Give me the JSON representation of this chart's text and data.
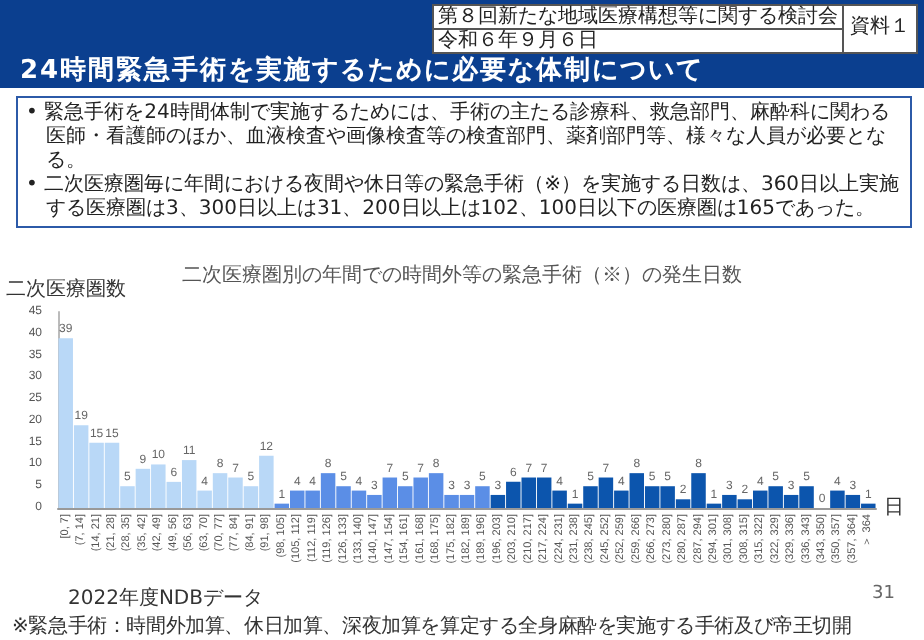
{
  "chart_data": {
    "type": "bar",
    "title": "二次医療圏別の年間での時間外等の緊急手術（※）の発生日数",
    "ylabel": "二次医療圏数",
    "xlabel": "日",
    "annotations": [
      "24時間緊急手術を実施するために必要な体制について",
      "第８回新たな地域医療構想等に関する検討会",
      "令和６年９月６日",
      "資料１",
      "• 緊急手術を24時間体制で実施するためには、手術の主たる診療科、救急部門、麻酔科に関わる医師・看護師のほか、血液検査や画像検査等の検査部門、薬剤部門等、様々な人員が必要となる。",
      "• 二次医療圏毎に年間における夜間や休日等の緊急手術（※）を実施する日数は、360日以上実施する医療圏は3、300日以上は31、200日以上は102、100日以下の医療圏は165であった。",
      "2022年度NDBデータ",
      "※緊急手術：時間外加算、休日加算、深夜加算を算定する全身麻酔を実施する手術及び帝王切開",
      "31"
    ],
    "categories": [
      "[0, 7]",
      "(7, 14]",
      "(14, 21]",
      "(21, 28]",
      "(28, 35]",
      "(35, 42]",
      "(42, 49]",
      "(49, 56]",
      "(56, 63]",
      "(63, 70]",
      "(70, 77]",
      "(77, 84]",
      "(84, 91]",
      "(91, 98]",
      "(98, 105]",
      "(105, 112]",
      "(112, 119]",
      "(119, 126]",
      "(126, 133]",
      "(133, 140]",
      "(140, 147]",
      "(147, 154]",
      "(154, 161]",
      "(161, 168]",
      "(168, 175]",
      "(175, 182]",
      "(182, 189]",
      "(189, 196]",
      "(196, 203]",
      "(203, 210]",
      "(210, 217]",
      "(217, 224]",
      "(224, 231]",
      "(231, 238]",
      "(238, 245]",
      "(245, 252]",
      "(252, 259]",
      "(259, 266]",
      "(266, 273]",
      "(273, 280]",
      "(280, 287]",
      "(287, 294]",
      "(294, 301]",
      "(301, 308]",
      "(308, 315]",
      "(315, 322]",
      "(322, 329]",
      "(329, 336]",
      "(336, 343]",
      "(343, 350]",
      "(350, 357]",
      "(357, 364]",
      "＞ 364"
    ],
    "values": [
      39,
      19,
      15,
      15,
      5,
      9,
      10,
      6,
      11,
      4,
      8,
      7,
      5,
      12,
      1,
      4,
      4,
      8,
      5,
      4,
      3,
      7,
      5,
      7,
      8,
      3,
      3,
      5,
      3,
      6,
      7,
      7,
      4,
      1,
      5,
      7,
      4,
      8,
      5,
      5,
      2,
      8,
      1,
      3,
      2,
      4,
      5,
      3,
      5,
      0,
      4,
      3,
      1
    ],
    "colors": [
      "#b9d8f7",
      "#b9d8f7",
      "#b9d8f7",
      "#b9d8f7",
      "#b9d8f7",
      "#b9d8f7",
      "#b9d8f7",
      "#b9d8f7",
      "#b9d8f7",
      "#b9d8f7",
      "#b9d8f7",
      "#b9d8f7",
      "#b9d8f7",
      "#b9d8f7",
      "#5b8ee6",
      "#5b8ee6",
      "#5b8ee6",
      "#5b8ee6",
      "#5b8ee6",
      "#5b8ee6",
      "#5b8ee6",
      "#5b8ee6",
      "#5b8ee6",
      "#5b8ee6",
      "#5b8ee6",
      "#5b8ee6",
      "#5b8ee6",
      "#5b8ee6",
      "#0c55ad",
      "#0c55ad",
      "#0c55ad",
      "#0c55ad",
      "#0c55ad",
      "#0c55ad",
      "#0c55ad",
      "#0c55ad",
      "#0c55ad",
      "#0c55ad",
      "#0c55ad",
      "#0c55ad",
      "#0c55ad",
      "#0c55ad",
      "#0c55ad",
      "#0c55ad",
      "#0c55ad",
      "#0c55ad",
      "#0c55ad",
      "#0c55ad",
      "#0c55ad",
      "#0c55ad",
      "#0c55ad",
      "#0c55ad",
      "#0c55ad"
    ],
    "ylim": [
      0,
      45
    ],
    "yticks": [
      0,
      5,
      10,
      15,
      20,
      25,
      30,
      35,
      40,
      45
    ],
    "data_labels": true,
    "grid": false
  }
}
